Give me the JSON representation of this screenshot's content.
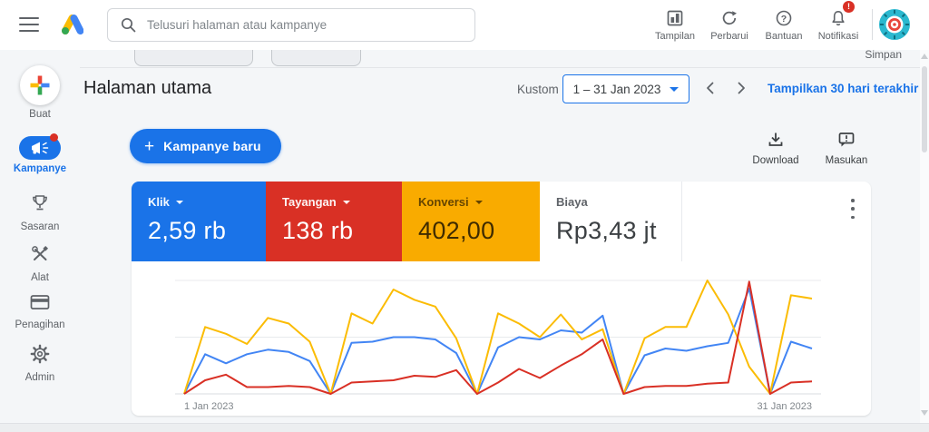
{
  "topbar": {
    "search_placeholder": "Telusuri halaman atau kampanye",
    "actions": [
      {
        "label": "Tampilan",
        "icon": "display-icon"
      },
      {
        "label": "Perbarui",
        "icon": "refresh-icon"
      },
      {
        "label": "Bantuan",
        "icon": "help-icon"
      },
      {
        "label": "Notifikasi",
        "icon": "bell-icon",
        "badge": "!"
      }
    ],
    "notification_badge": "!",
    "save_label": "Simpan"
  },
  "sidebar": {
    "items": [
      {
        "label": "Buat",
        "icon": "plus-multicolor-icon"
      },
      {
        "label": "Kampanye",
        "icon": "megaphone-icon",
        "active": true
      },
      {
        "label": "Sasaran",
        "icon": "trophy-icon"
      },
      {
        "label": "Alat",
        "icon": "tools-icon"
      },
      {
        "label": "Penagihan",
        "icon": "credit-card-icon"
      },
      {
        "label": "Admin",
        "icon": "gear-icon"
      }
    ]
  },
  "header": {
    "title": "Halaman utama",
    "date_mode_label": "Kustom",
    "date_range": "1 – 31 Jan 2023",
    "show_last_30_link": "Tampilkan 30 hari terakhir"
  },
  "toolbar": {
    "new_campaign_label": "Kampanye baru",
    "new_campaign_plus": "+",
    "download_label": "Download",
    "feedback_label": "Masukan"
  },
  "scorecards": [
    {
      "label": "Klik",
      "value": "2,59 rb",
      "bg": "#1a73e8",
      "label_color": "rgba(255,255,255,0.95)",
      "value_color": "#ffffff",
      "has_caret": true
    },
    {
      "label": "Tayangan",
      "value": "138 rb",
      "bg": "#d93025",
      "label_color": "rgba(255,255,255,0.95)",
      "value_color": "#ffffff",
      "has_caret": true
    },
    {
      "label": "Konversi",
      "value": "402,00",
      "bg": "#f9ab00",
      "label_color": "rgba(0,0,0,0.60)",
      "value_color": "rgba(0,0,0,0.75)",
      "has_caret": true
    },
    {
      "label": "Biaya",
      "value": "Rp3,43 jt",
      "bg": "#ffffff",
      "label_color": "#5f6368",
      "value_color": "#3c4043",
      "has_caret": false
    }
  ],
  "chart_data": {
    "type": "line",
    "x_unit": "day",
    "x_range": [
      "1 Jan 2023",
      "31 Jan 2023"
    ],
    "x_axis_labels": [
      "1 Jan 2023",
      "31 Jan 2023"
    ],
    "y_axis_labels": false,
    "y_scale_note": "unlabeled axis; values are percent of chart height (top gridline = 100)",
    "gridlines": 3,
    "days": [
      1,
      2,
      3,
      4,
      5,
      6,
      7,
      8,
      9,
      10,
      11,
      12,
      13,
      14,
      15,
      16,
      17,
      18,
      19,
      20,
      21,
      22,
      23,
      24,
      25,
      26,
      27,
      28,
      29,
      30,
      31
    ],
    "series": [
      {
        "name": "Klik",
        "color": "#4285f4",
        "values": [
          0,
          35,
          27,
          35,
          39,
          37,
          29,
          0,
          45,
          46,
          50,
          50,
          48,
          36,
          0,
          41,
          50,
          48,
          56,
          54,
          69,
          0,
          34,
          40,
          38,
          42,
          45,
          93,
          0,
          46,
          40
        ]
      },
      {
        "name": "Tayangan",
        "color": "#d93025",
        "values": [
          0,
          12,
          17,
          6,
          6,
          7,
          6,
          0,
          10,
          11,
          12,
          16,
          15,
          21,
          0,
          10,
          22,
          14,
          25,
          35,
          48,
          0,
          6,
          7,
          7,
          9,
          10,
          99,
          0,
          10,
          11
        ]
      },
      {
        "name": "Konversi",
        "color": "#fbbc04",
        "values": [
          0,
          59,
          53,
          44,
          67,
          62,
          46,
          0,
          71,
          62,
          92,
          83,
          77,
          49,
          0,
          71,
          62,
          50,
          70,
          48,
          57,
          0,
          49,
          59,
          59,
          100,
          70,
          24,
          0,
          87,
          84
        ]
      }
    ],
    "draw_order": [
      0,
      2,
      1
    ]
  }
}
